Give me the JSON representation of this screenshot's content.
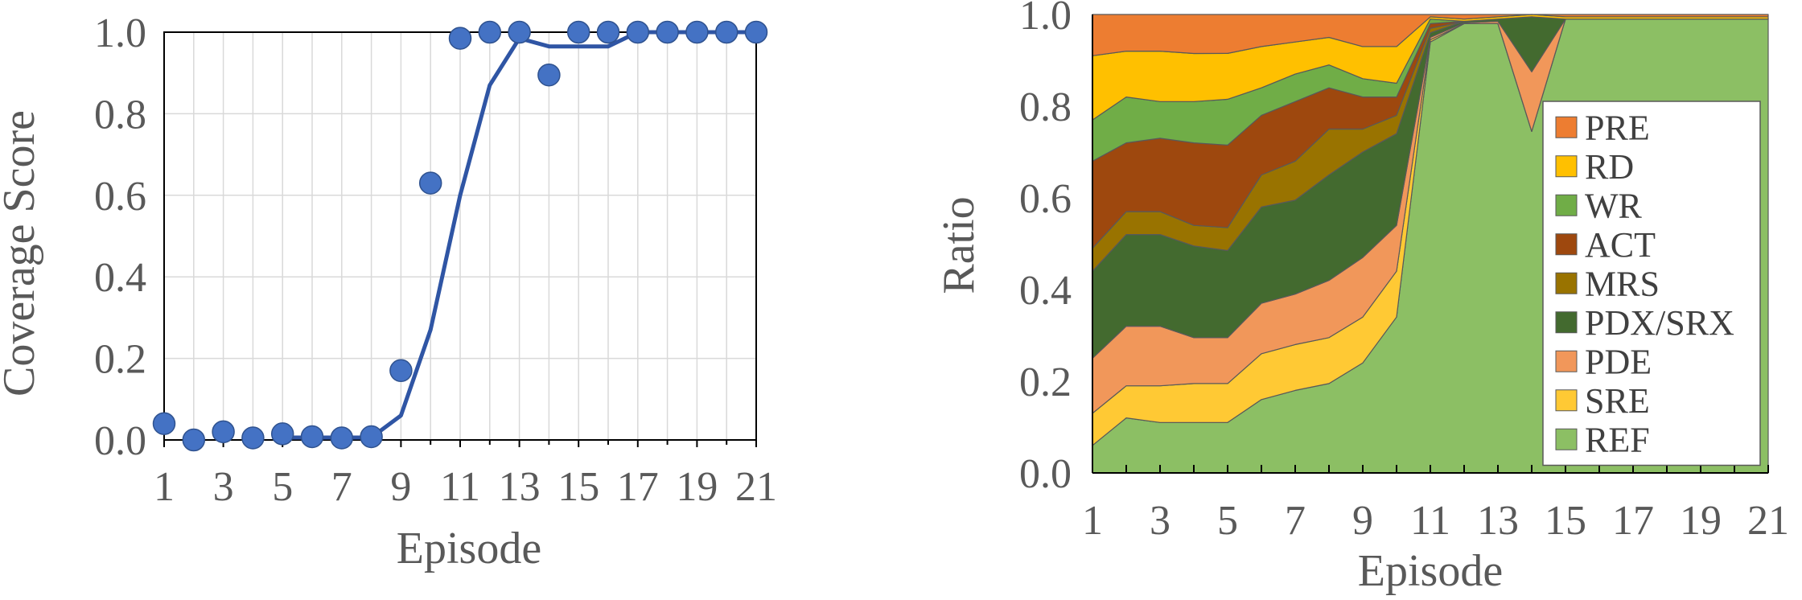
{
  "chart_data": [
    {
      "type": "scatter",
      "xlabel": "Episode",
      "ylabel": "Coverage Score",
      "xlim": [
        1,
        21
      ],
      "ylim": [
        0,
        1
      ],
      "x_ticks": [
        "1",
        "3",
        "5",
        "7",
        "9",
        "11",
        "13",
        "15",
        "17",
        "19",
        "21"
      ],
      "y_ticks": [
        "0.0",
        "0.2",
        "0.4",
        "0.6",
        "0.8",
        "1.0"
      ],
      "grid": true,
      "x": [
        1,
        2,
        3,
        4,
        5,
        6,
        7,
        8,
        9,
        10,
        11,
        12,
        13,
        14,
        15,
        16,
        17,
        18,
        19,
        20,
        21
      ],
      "points": [
        0.04,
        0.0,
        0.02,
        0.005,
        0.015,
        0.008,
        0.005,
        0.008,
        0.17,
        0.63,
        0.985,
        1.0,
        1.0,
        0.895,
        1.0,
        1.0,
        1.0,
        1.0,
        1.0,
        1.0,
        1.0
      ],
      "trend_line": [
        null,
        null,
        null,
        null,
        0.006,
        0.006,
        0.006,
        0.006,
        0.06,
        0.27,
        0.6,
        0.87,
        0.985,
        0.965,
        0.965,
        0.965,
        1.0,
        1.0,
        1.0,
        1.0,
        1.0
      ],
      "marker_color": "#4472c4",
      "line_color": "#2f55a4"
    },
    {
      "type": "area",
      "stacked": true,
      "xlabel": "Episode",
      "ylabel": "Ratio",
      "xlim": [
        1,
        21
      ],
      "ylim": [
        0,
        1
      ],
      "x_ticks": [
        "1",
        "3",
        "5",
        "7",
        "9",
        "11",
        "13",
        "15",
        "17",
        "19",
        "21"
      ],
      "y_ticks": [
        "0.0",
        "0.2",
        "0.4",
        "0.6",
        "0.8",
        "1.0"
      ],
      "legend_position": "right",
      "x": [
        1,
        2,
        3,
        4,
        5,
        6,
        7,
        8,
        9,
        10,
        11,
        12,
        13,
        14,
        15,
        16,
        17,
        18,
        19,
        20,
        21
      ],
      "series": [
        {
          "name": "REF",
          "color": "#8cbf64",
          "values": [
            0.06,
            0.12,
            0.11,
            0.11,
            0.11,
            0.16,
            0.18,
            0.195,
            0.24,
            0.34,
            0.94,
            0.98,
            0.98,
            0.745,
            0.99,
            0.99,
            0.99,
            0.99,
            0.99,
            0.99,
            0.99
          ]
        },
        {
          "name": "SRE",
          "color": "#ffc934",
          "values": [
            0.07,
            0.07,
            0.08,
            0.085,
            0.085,
            0.1,
            0.1,
            0.1,
            0.1,
            0.1,
            0.005,
            0,
            0,
            0,
            0,
            0,
            0,
            0,
            0,
            0,
            0
          ]
        },
        {
          "name": "PDE",
          "color": "#f1975a",
          "values": [
            0.12,
            0.13,
            0.13,
            0.1,
            0.1,
            0.11,
            0.11,
            0.125,
            0.13,
            0.1,
            0.005,
            0.002,
            0.005,
            0.13,
            0,
            0,
            0,
            0,
            0,
            0,
            0
          ]
        },
        {
          "name": "PDX/SRX",
          "color": "#436a2f",
          "values": [
            0.19,
            0.2,
            0.2,
            0.2,
            0.19,
            0.21,
            0.205,
            0.23,
            0.23,
            0.2,
            0.01,
            0.003,
            0.005,
            0.12,
            0,
            0,
            0,
            0,
            0,
            0,
            0
          ]
        },
        {
          "name": "MRS",
          "color": "#997300",
          "values": [
            0.05,
            0.05,
            0.05,
            0.045,
            0.05,
            0.07,
            0.085,
            0.1,
            0.05,
            0.04,
            0.01,
            0,
            0,
            0,
            0,
            0,
            0,
            0,
            0,
            0,
            0
          ]
        },
        {
          "name": "ACT",
          "color": "#9e480e",
          "values": [
            0.19,
            0.15,
            0.16,
            0.18,
            0.18,
            0.13,
            0.13,
            0.09,
            0.07,
            0.04,
            0.01,
            0,
            0,
            0,
            0,
            0,
            0,
            0,
            0,
            0,
            0
          ]
        },
        {
          "name": "WR",
          "color": "#70ad47",
          "values": [
            0.09,
            0.1,
            0.08,
            0.09,
            0.1,
            0.06,
            0.06,
            0.05,
            0.04,
            0.03,
            0.01,
            0,
            0,
            0,
            0,
            0,
            0,
            0,
            0,
            0,
            0
          ]
        },
        {
          "name": "RD",
          "color": "#ffc000",
          "values": [
            0.14,
            0.1,
            0.11,
            0.105,
            0.1,
            0.09,
            0.07,
            0.06,
            0.07,
            0.08,
            0.005,
            0.005,
            0.005,
            0.005,
            0.005,
            0.005,
            0.005,
            0.005,
            0.005,
            0.005,
            0.005
          ]
        },
        {
          "name": "PRE",
          "color": "#ed7d31",
          "values": [
            0.09,
            0.08,
            0.08,
            0.085,
            0.085,
            0.07,
            0.06,
            0.05,
            0.07,
            0.07,
            0.005,
            0.01,
            0.005,
            0.0,
            0.005,
            0.005,
            0.005,
            0.005,
            0.005,
            0.005,
            0.005
          ]
        }
      ],
      "legend_order": [
        "PRE",
        "RD",
        "WR",
        "ACT",
        "MRS",
        "PDX/SRX",
        "PDE",
        "SRE",
        "REF"
      ]
    }
  ]
}
